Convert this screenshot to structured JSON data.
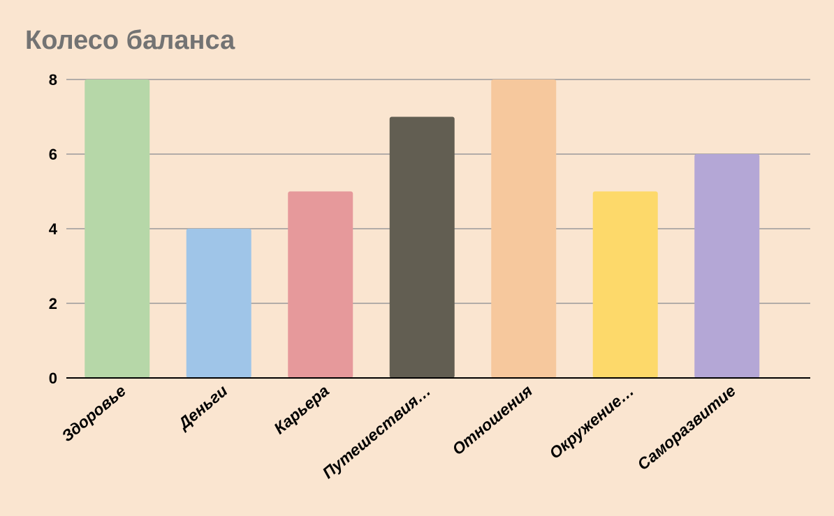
{
  "chart_data": {
    "type": "bar",
    "title": "Колесо баланса",
    "xlabel": "",
    "ylabel": "",
    "categories": [
      "Здоровье",
      "Деньги",
      "Карьера",
      "Путешествия…",
      "Отношения",
      "Окружение…",
      "Саморазвитие"
    ],
    "values": [
      8,
      4,
      5,
      7,
      8,
      5,
      6
    ],
    "colors": [
      "#b6d7a8",
      "#9fc5e8",
      "#e6999b",
      "#625e52",
      "#f6c89d",
      "#fdd96a",
      "#b4a7d6"
    ],
    "ylim": [
      0,
      8
    ],
    "yticks": [
      "0",
      "2",
      "4",
      "6",
      "8"
    ],
    "grid": true,
    "legend": "none"
  },
  "colors": {
    "background": "#fae5d0",
    "title": "#737373",
    "grid": "#9a9a9a",
    "axis": "#000000"
  }
}
